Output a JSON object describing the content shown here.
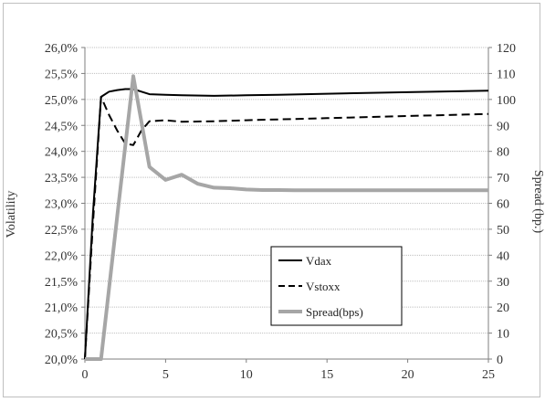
{
  "chart_data": {
    "type": "line",
    "xlabel": "",
    "ylabel": "Volatility",
    "y2label": "Spread (bp.)",
    "xlim": [
      0,
      25
    ],
    "ylim": [
      20.0,
      26.0
    ],
    "y2lim": [
      0,
      120
    ],
    "x_ticks": [
      "0",
      "5",
      "10",
      "15",
      "20",
      "25"
    ],
    "y_ticks": [
      "20,0%",
      "20,5%",
      "21,0%",
      "21,5%",
      "22,0%",
      "22,5%",
      "23,0%",
      "23,5%",
      "24,0%",
      "24,5%",
      "25,0%",
      "25,5%",
      "26,0%"
    ],
    "y2_ticks": [
      "0",
      "10",
      "20",
      "30",
      "40",
      "50",
      "60",
      "70",
      "80",
      "90",
      "100",
      "110",
      "120"
    ],
    "grid": "horizontal",
    "legend_position": "lower-center",
    "series": [
      {
        "name": "Vdax",
        "axis": "left",
        "style": "solid",
        "color": "#000000",
        "points": [
          [
            0,
            20.0
          ],
          [
            0.5,
            22.8
          ],
          [
            1,
            25.05
          ],
          [
            1.5,
            25.15
          ],
          [
            2,
            25.18
          ],
          [
            2.5,
            25.2
          ],
          [
            3,
            25.2
          ],
          [
            3.5,
            25.15
          ],
          [
            4,
            25.1
          ],
          [
            5,
            25.09
          ],
          [
            6,
            25.08
          ],
          [
            8,
            25.07
          ],
          [
            10,
            25.08
          ],
          [
            12,
            25.09
          ],
          [
            15,
            25.11
          ],
          [
            20,
            25.14
          ],
          [
            25,
            25.17
          ]
        ]
      },
      {
        "name": "Vstoxx",
        "axis": "left",
        "style": "dashed",
        "color": "#000000",
        "points": [
          [
            0,
            20.0
          ],
          [
            0.5,
            22.6
          ],
          [
            1,
            25.05
          ],
          [
            1.5,
            24.7
          ],
          [
            2,
            24.4
          ],
          [
            2.5,
            24.15
          ],
          [
            3,
            24.12
          ],
          [
            3.5,
            24.4
          ],
          [
            4,
            24.58
          ],
          [
            5,
            24.6
          ],
          [
            6,
            24.57
          ],
          [
            8,
            24.58
          ],
          [
            10,
            24.6
          ],
          [
            15,
            24.64
          ],
          [
            20,
            24.68
          ],
          [
            25,
            24.72
          ]
        ]
      },
      {
        "name": "Spread(bps)",
        "axis": "right",
        "style": "solid",
        "color": "#a6a6a6",
        "points": [
          [
            0,
            0
          ],
          [
            1,
            0
          ],
          [
            2,
            55
          ],
          [
            3,
            109
          ],
          [
            4,
            74
          ],
          [
            5,
            69
          ],
          [
            6,
            71
          ],
          [
            7,
            67.5
          ],
          [
            8,
            66
          ],
          [
            9,
            65.8
          ],
          [
            10,
            65.3
          ],
          [
            11,
            65.1
          ],
          [
            12,
            65.1
          ],
          [
            13,
            65
          ],
          [
            15,
            65
          ],
          [
            20,
            65
          ],
          [
            25,
            65
          ]
        ]
      }
    ]
  }
}
